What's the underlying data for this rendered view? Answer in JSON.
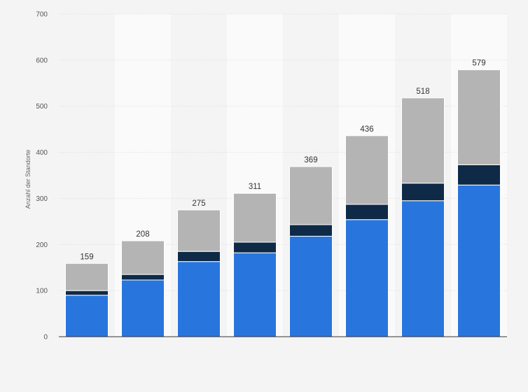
{
  "chart_data": {
    "type": "bar",
    "stacked": true,
    "title": "",
    "xlabel": "",
    "ylabel": "Anzahl der Standorte",
    "ylim": [
      0,
      700
    ],
    "yticks": [
      "0",
      "100",
      "200",
      "300",
      "400",
      "500",
      "600",
      "700"
    ],
    "categories": [
      "",
      "",
      "",
      "",
      "",
      "",
      "",
      ""
    ],
    "series": [
      {
        "color": "#2876dd",
        "values": [
          90,
          123,
          163,
          182,
          218,
          254,
          295,
          329
        ]
      },
      {
        "color": "#0f2a47",
        "values": [
          10,
          12,
          22,
          23,
          25,
          33,
          38,
          44
        ]
      },
      {
        "color": "#b4b4b4",
        "values": [
          59,
          73,
          90,
          106,
          126,
          149,
          185,
          206
        ]
      }
    ],
    "totals": [
      "159",
      "208",
      "275",
      "311",
      "369",
      "436",
      "518",
      "579"
    ],
    "grid": true,
    "legend": "none",
    "colors": {
      "background": "#f4f4f4",
      "plot_band_light": "#fafafa",
      "gridline": "#d9d9d9",
      "axis": "#333333"
    }
  }
}
